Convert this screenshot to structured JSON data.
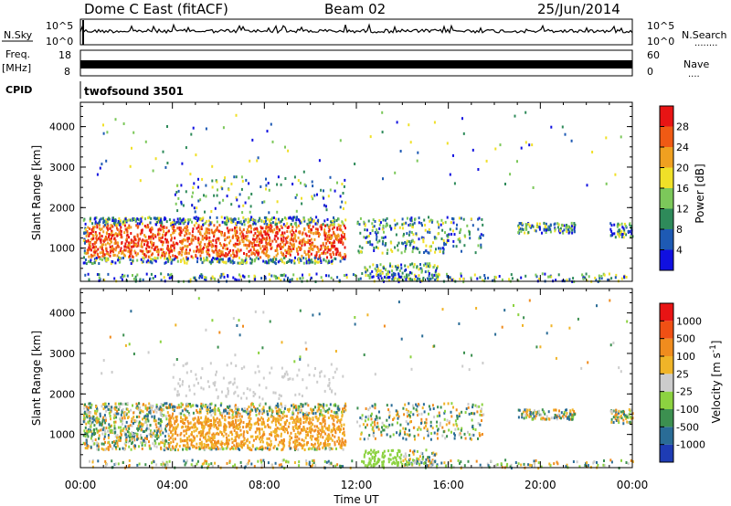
{
  "header": {
    "title": "Dome C East (fitACF)",
    "beam": "Beam 02",
    "date": "25/Jun/2014"
  },
  "top_panels": {
    "nsky_label": "N.Sky",
    "nsearch_label": "N.Search",
    "noise_ticks_left": [
      "10^5",
      "10^0"
    ],
    "noise_ticks_right": [
      "10^5",
      "10^0"
    ],
    "freq_label_top": "Freq.",
    "freq_label_unit": "[MHz]",
    "freq_ticks_left": [
      "18",
      "8"
    ],
    "nave_label": "Nave",
    "nave_ticks_right": [
      "60",
      "0"
    ],
    "cpid_label": "CPID",
    "cpid_value": "twofsound 3501"
  },
  "chart_data": [
    {
      "type": "heatmap",
      "name": "power-panel",
      "ylabel": "Slant Range [km]",
      "yticks": [
        "1000",
        "2000",
        "3000",
        "4000"
      ],
      "ylim": [
        180,
        4600
      ],
      "xlim_hours": [
        0,
        24
      ],
      "colorbar": {
        "label": "Power [dB]",
        "ticks": [
          "4",
          "8",
          "12",
          "16",
          "20",
          "24",
          "28"
        ],
        "colors": [
          "#1010e0",
          "#1e5ab4",
          "#2e8a5a",
          "#7cc85a",
          "#f0e028",
          "#f0a020",
          "#f05a14",
          "#e81414"
        ]
      }
    },
    {
      "type": "heatmap",
      "name": "velocity-panel",
      "ylabel": "Slant Range [km]",
      "yticks": [
        "1000",
        "2000",
        "3000",
        "4000"
      ],
      "ylim": [
        180,
        4600
      ],
      "xlim_hours": [
        0,
        24
      ],
      "xlabel": "Time UT",
      "xticks": [
        "00:00",
        "04:00",
        "08:00",
        "12:00",
        "16:00",
        "20:00",
        "00:00"
      ],
      "colorbar": {
        "label": "Velocity [m s^-1]",
        "ticks": [
          "1000",
          "500",
          "100",
          "25",
          "-25",
          "-100",
          "-500",
          "-1000"
        ],
        "colors": [
          "#1e3cb4",
          "#2a6c96",
          "#3c9050",
          "#8cd240",
          "#cccccc",
          "#f0b428",
          "#f08c1e",
          "#f05014",
          "#e81414"
        ]
      }
    }
  ]
}
